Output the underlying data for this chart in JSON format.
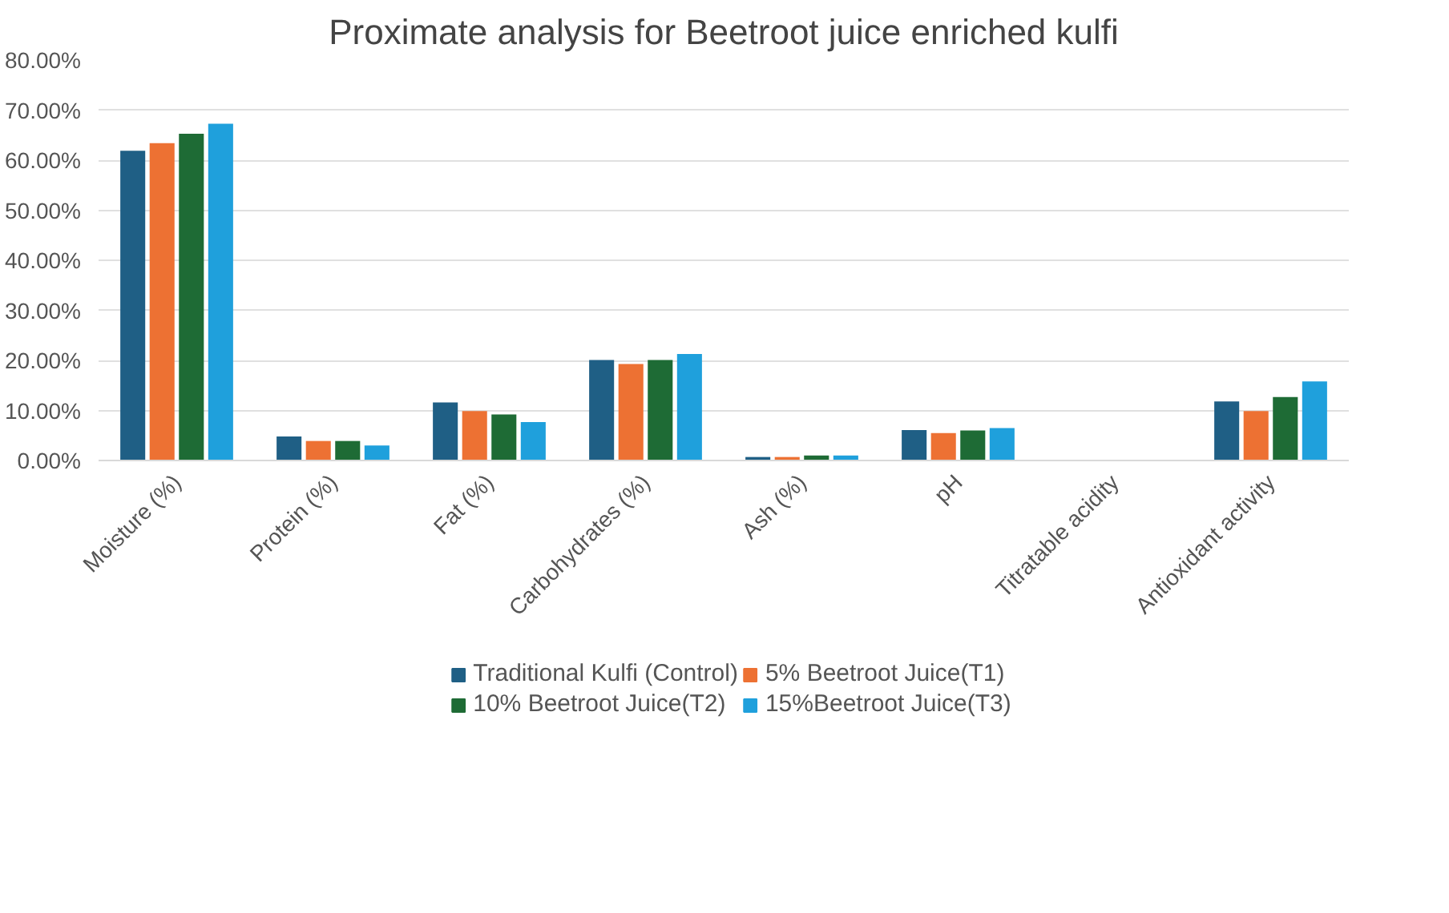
{
  "chart_data": {
    "type": "bar",
    "title": "Proximate analysis for Beetroot juice enriched kulfi",
    "categories": [
      "Moisture (%)",
      "Protein (%)",
      "Fat (%)",
      "Carbohydrates (%)",
      "Ash (%)",
      "pH",
      "Titratable acidity",
      "Antioxidant activity"
    ],
    "series": [
      {
        "name": "Traditional Kulfi (Control)",
        "color": "#1f5f85",
        "values": [
          61.9,
          4.8,
          11.6,
          20.1,
          0.7,
          6.1,
          0,
          11.8
        ]
      },
      {
        "name": "5% Beetroot Juice(T1)",
        "color": "#ed7133",
        "values": [
          63.4,
          3.9,
          9.9,
          19.3,
          0.7,
          5.5,
          0,
          9.9
        ]
      },
      {
        "name": "10% Beetroot Juice(T2)",
        "color": "#1e6b35",
        "values": [
          65.3,
          3.9,
          9.2,
          20.1,
          1.0,
          6.0,
          0,
          12.7
        ]
      },
      {
        "name": "15%Beetroot Juice(T3)",
        "color": "#1fa0dc",
        "values": [
          67.3,
          3.0,
          7.7,
          21.3,
          1.0,
          6.5,
          0,
          15.8
        ]
      }
    ],
    "ylim": [
      0,
      80
    ],
    "yticks": [
      {
        "value": 0,
        "label": "0.00%"
      },
      {
        "value": 10,
        "label": "10.00%"
      },
      {
        "value": 20,
        "label": "20.00%"
      },
      {
        "value": 30,
        "label": "30.00%"
      },
      {
        "value": 40,
        "label": "40.00%"
      },
      {
        "value": 50,
        "label": "50.00%"
      },
      {
        "value": 60,
        "label": "60.00%"
      },
      {
        "value": 70,
        "label": "70.00%"
      },
      {
        "value": 80,
        "label": "80.00%"
      }
    ],
    "grid": "y",
    "legend": "bottom"
  }
}
